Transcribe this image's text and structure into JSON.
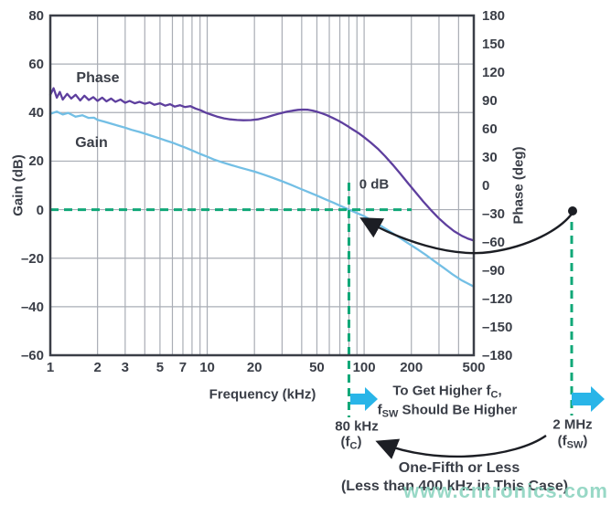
{
  "colors": {
    "ink": "#3a3e47",
    "grid": "#a9adb5",
    "phase_curve": "#5e3f9e",
    "gain_curve": "#73bfe5",
    "guide_dash": "#10a878",
    "cyan_arrow": "#29b5e8",
    "arc_arrow": "#1c1e24",
    "watermark": "#86d1bc"
  },
  "watermark": {
    "text": "www.cntronics.com"
  },
  "chart_data": {
    "type": "line",
    "title": "",
    "xlabel": "Frequency (kHz)",
    "ylabel_left": "Gain (dB)",
    "ylabel_right": "Phase (deg)",
    "x_scale": "log",
    "x_range": [
      1,
      500
    ],
    "grid": true,
    "legend_position": "in-plot labels",
    "x_ticks": [
      {
        "label": "1",
        "value": 1
      },
      {
        "label": "2",
        "value": 2
      },
      {
        "label": "3",
        "value": 3
      },
      {
        "label": "5",
        "value": 5
      },
      {
        "label": "7",
        "value": 7
      },
      {
        "label": "10",
        "value": 10
      },
      {
        "label": "20",
        "value": 20
      },
      {
        "label": "50",
        "value": 50
      },
      {
        "label": "100",
        "value": 100
      },
      {
        "label": "200",
        "value": 200
      },
      {
        "label": "500",
        "value": 500
      }
    ],
    "y_left_range": [
      -60,
      80
    ],
    "y_left_ticks": [
      {
        "label": "80",
        "value": 80
      },
      {
        "label": "60",
        "value": 60
      },
      {
        "label": "40",
        "value": 40
      },
      {
        "label": "20",
        "value": 20
      },
      {
        "label": "0",
        "value": 0
      },
      {
        "label": "–20",
        "value": -20
      },
      {
        "label": "–40",
        "value": -40
      },
      {
        "label": "–60",
        "value": -60
      }
    ],
    "y_right_range": [
      -180,
      180
    ],
    "y_right_ticks": [
      {
        "label": "180",
        "value": 180
      },
      {
        "label": "150",
        "value": 150
      },
      {
        "label": "120",
        "value": 120
      },
      {
        "label": "90",
        "value": 90
      },
      {
        "label": "60",
        "value": 60
      },
      {
        "label": "30",
        "value": 30
      },
      {
        "label": "0",
        "value": 0
      },
      {
        "label": "–30",
        "value": -30
      },
      {
        "label": "–60",
        "value": -60
      },
      {
        "label": "–90",
        "value": -90
      },
      {
        "label": "–120",
        "value": -120
      },
      {
        "label": "–150",
        "value": -150
      },
      {
        "label": "–180",
        "value": -180
      }
    ],
    "series": [
      {
        "name": "Phase",
        "axis": "right",
        "unit": "deg",
        "points": [
          [
            1,
            96
          ],
          [
            1.05,
            103
          ],
          [
            1.1,
            93
          ],
          [
            1.15,
            99
          ],
          [
            1.2,
            91
          ],
          [
            1.28,
            97
          ],
          [
            1.36,
            92
          ],
          [
            1.45,
            96
          ],
          [
            1.55,
            90
          ],
          [
            1.65,
            95
          ],
          [
            1.76,
            90.5
          ],
          [
            1.88,
            93.5
          ],
          [
            2,
            89.5
          ],
          [
            2.14,
            93
          ],
          [
            2.28,
            89
          ],
          [
            2.44,
            92
          ],
          [
            2.6,
            88.5
          ],
          [
            2.8,
            91
          ],
          [
            3,
            87.5
          ],
          [
            3.2,
            89.5
          ],
          [
            3.45,
            87
          ],
          [
            3.7,
            88.5
          ],
          [
            4,
            86.5
          ],
          [
            4.3,
            88
          ],
          [
            4.6,
            85.5
          ],
          [
            5,
            87
          ],
          [
            5.4,
            84.5
          ],
          [
            5.8,
            86
          ],
          [
            6.2,
            83.5
          ],
          [
            6.7,
            85
          ],
          [
            7.2,
            83
          ],
          [
            7.8,
            84
          ],
          [
            8.4,
            81.5
          ],
          [
            9.1,
            79.5
          ],
          [
            9.8,
            77
          ],
          [
            10.6,
            75
          ],
          [
            11.5,
            73
          ],
          [
            12.8,
            71
          ],
          [
            14,
            70
          ],
          [
            15.5,
            69.3
          ],
          [
            17,
            69
          ],
          [
            19,
            69.2
          ],
          [
            21,
            70
          ],
          [
            23.5,
            71.8
          ],
          [
            26,
            74
          ],
          [
            29,
            76.3
          ],
          [
            32,
            78
          ],
          [
            35,
            79.2
          ],
          [
            38,
            80
          ],
          [
            41,
            80.3
          ],
          [
            44,
            80.1
          ],
          [
            47,
            79.3
          ],
          [
            50,
            78
          ],
          [
            54,
            76.3
          ],
          [
            58,
            74.3
          ],
          [
            63,
            71.5
          ],
          [
            68,
            68.8
          ],
          [
            73,
            66
          ],
          [
            79,
            62.5
          ],
          [
            85,
            59
          ],
          [
            92,
            55.5
          ],
          [
            100,
            51
          ],
          [
            110,
            45.5
          ],
          [
            122,
            39
          ],
          [
            136,
            31
          ],
          [
            152,
            22
          ],
          [
            170,
            12.5
          ],
          [
            190,
            2.5
          ],
          [
            212,
            -7
          ],
          [
            238,
            -17
          ],
          [
            266,
            -26
          ],
          [
            298,
            -34.5
          ],
          [
            334,
            -42
          ],
          [
            374,
            -48.5
          ],
          [
            420,
            -53.5
          ],
          [
            460,
            -56.5
          ],
          [
            500,
            -58.5
          ]
        ]
      },
      {
        "name": "Gain",
        "axis": "left",
        "unit": "dB",
        "points": [
          [
            1,
            39.5
          ],
          [
            1.1,
            40.4
          ],
          [
            1.2,
            39.2
          ],
          [
            1.3,
            39.9
          ],
          [
            1.45,
            38.3
          ],
          [
            1.6,
            38.9
          ],
          [
            1.75,
            37.8
          ],
          [
            1.9,
            37.9
          ],
          [
            2,
            37
          ],
          [
            2.2,
            36.3
          ],
          [
            2.45,
            35.4
          ],
          [
            2.7,
            34.6
          ],
          [
            3,
            33.8
          ],
          [
            3.3,
            32.9
          ],
          [
            3.7,
            32
          ],
          [
            4.1,
            31.1
          ],
          [
            4.5,
            30.3
          ],
          [
            5,
            29.3
          ],
          [
            5.5,
            28.4
          ],
          [
            6,
            27.6
          ],
          [
            6.6,
            26.6
          ],
          [
            7.3,
            25.5
          ],
          [
            8,
            24.4
          ],
          [
            9,
            23
          ],
          [
            10,
            21.8
          ],
          [
            11,
            20.7
          ],
          [
            12.5,
            19.5
          ],
          [
            14,
            18.5
          ],
          [
            16,
            17.4
          ],
          [
            18,
            16.5
          ],
          [
            20,
            15.7
          ],
          [
            23,
            14.4
          ],
          [
            26,
            13.2
          ],
          [
            30,
            11.7
          ],
          [
            34,
            10.3
          ],
          [
            39,
            8.7
          ],
          [
            44,
            7.3
          ],
          [
            50,
            5.8
          ],
          [
            57,
            4.2
          ],
          [
            64,
            2.8
          ],
          [
            72,
            1.3
          ],
          [
            80,
            0
          ],
          [
            90,
            -1.4
          ],
          [
            100,
            -2.7
          ],
          [
            113,
            -4.6
          ],
          [
            128,
            -6.7
          ],
          [
            145,
            -8.9
          ],
          [
            165,
            -11.2
          ],
          [
            188,
            -13.6
          ],
          [
            215,
            -16
          ],
          [
            245,
            -18.5
          ],
          [
            280,
            -21.2
          ],
          [
            320,
            -23.9
          ],
          [
            365,
            -26.6
          ],
          [
            415,
            -29
          ],
          [
            460,
            -30.5
          ],
          [
            500,
            -31.7
          ]
        ]
      }
    ],
    "series_labels": [
      {
        "text": "Phase"
      },
      {
        "text": "Gain"
      }
    ],
    "annotations": {
      "zero_db_label": "0 dB",
      "crossover_freq_khz": 80,
      "crossover_label": "80 kHz",
      "crossover_sub": [
        [
          "(f",
          false
        ],
        [
          "C",
          true
        ],
        [
          ")",
          false
        ]
      ],
      "switching_freq_label": "2 MHz",
      "switching_sub": [
        [
          "(f",
          false
        ],
        [
          "SW",
          true
        ],
        [
          ")",
          false
        ]
      ],
      "note_line1": [
        [
          "To Get Higher f",
          false
        ],
        [
          "C",
          true
        ],
        [
          ",",
          false
        ]
      ],
      "note_line2": [
        [
          "f",
          false
        ],
        [
          "SW",
          true
        ],
        [
          " Should Be Higher",
          false
        ]
      ],
      "one_fifth_line1": "One-Fifth or Less",
      "one_fifth_line2": "(Less than 400 kHz in This Case)"
    }
  }
}
